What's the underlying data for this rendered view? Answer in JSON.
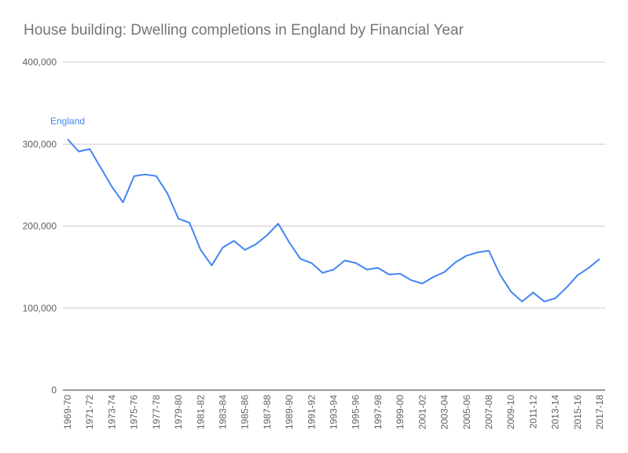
{
  "chart_data": {
    "type": "line",
    "title": "House building: Dwelling completions in England by Financial Year",
    "xlabel": "",
    "ylabel": "",
    "ylim": [
      0,
      400000
    ],
    "yticks": [
      {
        "value": 0,
        "label": "0"
      },
      {
        "value": 100000,
        "label": "100,000"
      },
      {
        "value": 200000,
        "label": "200,000"
      },
      {
        "value": 300000,
        "label": "300,000"
      },
      {
        "value": 400000,
        "label": "400,000"
      }
    ],
    "x": [
      "1969-70",
      "1970-71",
      "1971-72",
      "1972-73",
      "1973-74",
      "1974-75",
      "1975-76",
      "1976-77",
      "1977-78",
      "1978-79",
      "1979-80",
      "1980-81",
      "1981-82",
      "1982-83",
      "1983-84",
      "1984-85",
      "1985-86",
      "1986-87",
      "1987-88",
      "1988-89",
      "1989-90",
      "1990-91",
      "1991-92",
      "1992-93",
      "1993-94",
      "1994-95",
      "1995-96",
      "1996-97",
      "1997-98",
      "1998-99",
      "1999-00",
      "2000-01",
      "2001-02",
      "2002-03",
      "2003-04",
      "2004-05",
      "2005-06",
      "2006-07",
      "2007-08",
      "2008-09",
      "2009-10",
      "2010-11",
      "2011-12",
      "2012-13",
      "2013-14",
      "2014-15",
      "2015-16",
      "2016-17",
      "2017-18"
    ],
    "xtick_labels": [
      "1969-70",
      "1971-72",
      "1973-74",
      "1975-76",
      "1977-78",
      "1979-80",
      "1981-82",
      "1983-84",
      "1985-86",
      "1987-88",
      "1989-90",
      "1991-92",
      "1993-94",
      "1995-96",
      "1997-98",
      "1999-00",
      "2001-02",
      "2003-04",
      "2005-06",
      "2007-08",
      "2009-10",
      "2011-12",
      "2013-14",
      "2015-16",
      "2017-18"
    ],
    "series": [
      {
        "name": "England",
        "color": "#4285f4",
        "values": [
          306000,
          291000,
          294000,
          271000,
          248000,
          229000,
          261000,
          263000,
          261000,
          240000,
          209000,
          204000,
          171000,
          152000,
          174000,
          182000,
          171000,
          178000,
          189000,
          203000,
          180000,
          160000,
          155000,
          143000,
          147000,
          158000,
          155000,
          147000,
          149000,
          141000,
          142000,
          134000,
          130000,
          138000,
          144000,
          156000,
          164000,
          168000,
          170000,
          141000,
          120000,
          108000,
          119000,
          108000,
          112000,
          125000,
          140000,
          149000,
          160000
        ]
      }
    ],
    "gridlines": true,
    "legend": "inline-label"
  }
}
